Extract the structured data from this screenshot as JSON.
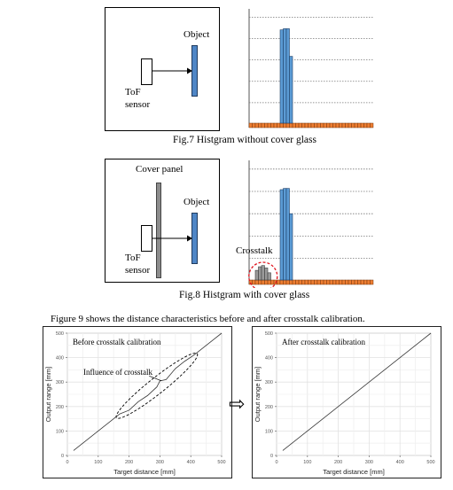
{
  "fig7": {
    "object_label": "Object",
    "sensor_label_1": "ToF",
    "sensor_label_2": "sensor",
    "caption": "Fig.7 Histgram without cover glass",
    "hist": {
      "type": "bar",
      "blue_values": [
        0.81,
        0.82,
        0.82,
        0.58
      ],
      "orange_bins": 40
    }
  },
  "fig8": {
    "cover_label": "Cover panel",
    "object_label": "Object",
    "sensor_label_1": "ToF",
    "sensor_label_2": "sensor",
    "crosstalk_label": "Crosstalk",
    "caption": "Fig.8 Histgram with cover glass",
    "hist": {
      "type": "bar",
      "crosstalk_values": [
        0.08,
        0.11,
        0.12,
        0.1,
        0.06
      ],
      "blue_values": [
        0.75,
        0.76,
        0.76,
        0.55
      ],
      "orange_bins": 40
    }
  },
  "body_text": "Figure 9 shows the distance characteristics before and after crosstalk calibration.",
  "arrow": "⇨",
  "chart_data": [
    {
      "type": "line",
      "title": "Before crosstalk calibration",
      "annotation": "Influence of crosstalk",
      "xlabel": "Target distance [mm]",
      "ylabel": "Output range [mm]",
      "xlim": [
        0,
        500
      ],
      "ylim": [
        0,
        500
      ],
      "xticks": [
        0,
        100,
        200,
        300,
        400,
        500
      ],
      "yticks": [
        0,
        100,
        200,
        300,
        400,
        500
      ],
      "grid": true,
      "series": [
        {
          "x": [
            20,
            170,
            200,
            230,
            260,
            290,
            300,
            320,
            350,
            380,
            410,
            500
          ],
          "y": [
            20,
            170,
            185,
            220,
            245,
            280,
            305,
            310,
            355,
            385,
            410,
            500
          ]
        }
      ]
    },
    {
      "type": "line",
      "title": "After crosstalk calibration",
      "xlabel": "Target distance [mm]",
      "ylabel": "Output range [mm]",
      "xlim": [
        0,
        500
      ],
      "ylim": [
        0,
        500
      ],
      "xticks": [
        0,
        100,
        200,
        300,
        400,
        500
      ],
      "yticks": [
        0,
        100,
        200,
        300,
        400,
        500
      ],
      "grid": true,
      "series": [
        {
          "x": [
            20,
            500
          ],
          "y": [
            20,
            500
          ]
        }
      ]
    }
  ]
}
